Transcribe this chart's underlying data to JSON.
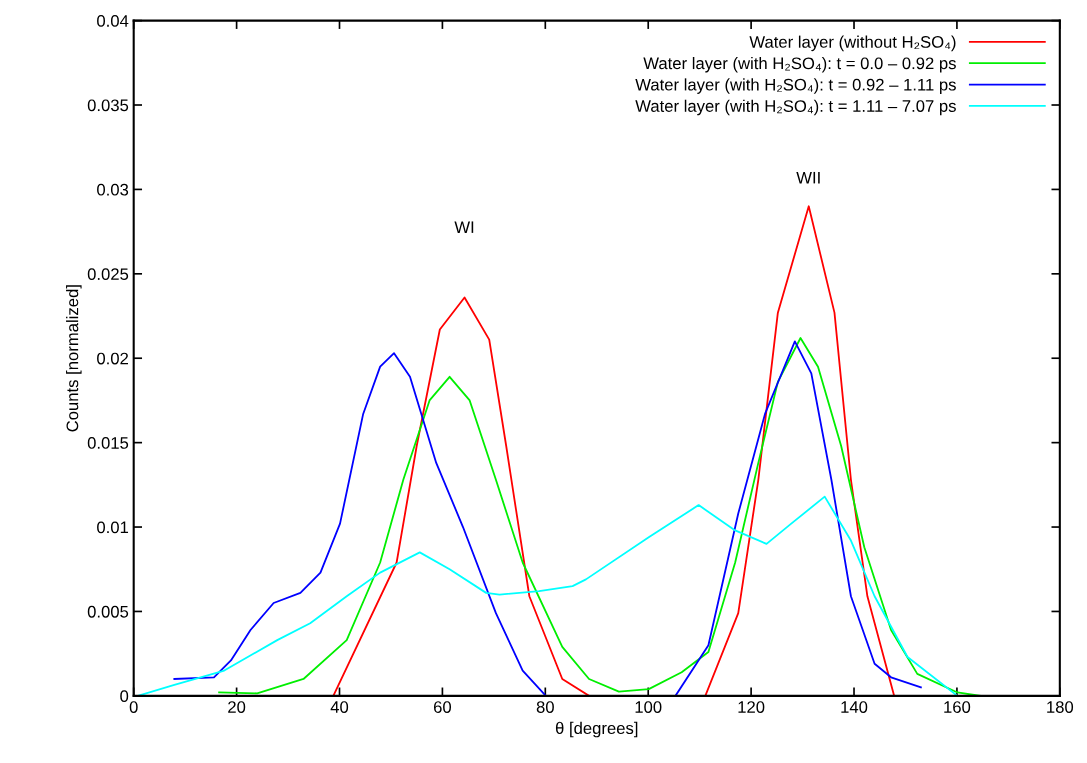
{
  "chart_data": {
    "type": "line",
    "xlabel": "θ [degrees]",
    "ylabel": "Counts [normalized]",
    "xlim": [
      0,
      180
    ],
    "xticks": [
      0,
      20,
      40,
      60,
      80,
      100,
      120,
      140,
      160,
      180
    ],
    "ylim": [
      0,
      0.04
    ],
    "yticks": [
      0,
      0.005,
      0.01,
      0.015,
      0.02,
      0.025,
      0.03,
      0.035,
      0.04
    ],
    "grid": false,
    "legend": "top right",
    "marker": "none",
    "line_style": "solid",
    "annotations": [
      "WI",
      "WII"
    ],
    "series": [
      {
        "name": "Water layer (without H₂SO₄)",
        "color": "#ff0000",
        "x": [
          38.8,
          51.1,
          55,
          59.5,
          64.3,
          69.1,
          72.4,
          76.9,
          83.3,
          88.5,
          111.1,
          117.5,
          121.4,
          125.2,
          131.2,
          136.2,
          139.4,
          142.6,
          147.8
        ],
        "values": [
          0,
          0.0079,
          0.0148,
          0.0217,
          0.0236,
          0.0211,
          0.0148,
          0.0059,
          0.001,
          0,
          0,
          0.0049,
          0.0128,
          0.0227,
          0.029,
          0.0227,
          0.0128,
          0.0059,
          0
        ]
      },
      {
        "name": "Water layer (with H₂SO₄): t = 0.0 – 0.92 ps",
        "color": "#00ee00",
        "x": [
          16.6,
          24,
          33,
          41.4,
          47.9,
          52.4,
          57.5,
          61.4,
          65.3,
          70.4,
          75.6,
          83.3,
          88.5,
          94.3,
          100.1,
          106.5,
          111.7,
          116.9,
          121.4,
          125.2,
          129.6,
          133,
          137.5,
          142,
          147.2,
          152.3,
          160.1,
          164.5
        ],
        "values": [
          0.0002,
          0.00015,
          0.001,
          0.0033,
          0.0079,
          0.0128,
          0.0175,
          0.0189,
          0.0175,
          0.0128,
          0.0079,
          0.0029,
          0.001,
          0.00025,
          0.0004,
          0.0014,
          0.0026,
          0.0079,
          0.0138,
          0.0186,
          0.0212,
          0.0195,
          0.0148,
          0.0088,
          0.0039,
          0.0013,
          0.0002,
          0
        ]
      },
      {
        "name": "Water layer (with H₂SO₄): t = 0.92 – 1.11 ps",
        "color": "#0000ff",
        "x": [
          7.9,
          15.6,
          18.9,
          22.7,
          27.2,
          32.4,
          36.3,
          40.1,
          44.6,
          47.9,
          50.6,
          53.7,
          58.8,
          64,
          70.4,
          75.6,
          80.1,
          105.3,
          111.7,
          117.5,
          122.7,
          128.5,
          131.7,
          135.6,
          139.4,
          144,
          147.2,
          153
        ],
        "values": [
          0.001,
          0.0011,
          0.0021,
          0.0039,
          0.0055,
          0.0061,
          0.0073,
          0.0102,
          0.0167,
          0.0195,
          0.0203,
          0.0189,
          0.0138,
          0.01,
          0.0049,
          0.0015,
          0,
          0,
          0.003,
          0.0108,
          0.0167,
          0.021,
          0.0191,
          0.0128,
          0.0059,
          0.0019,
          0.0011,
          0.0005
        ]
      },
      {
        "name": "Water layer (with H₂SO₄): t = 1.11 – 7.07 ps",
        "color": "#00ffff",
        "x": [
          0.8,
          7.9,
          17.6,
          27.9,
          34.3,
          41.4,
          47.9,
          55.6,
          61.4,
          68.5,
          71.1,
          78.8,
          85.3,
          87.9,
          100.1,
          109.8,
          116.9,
          123,
          127.8,
          134.3,
          139.4,
          144,
          150.4,
          160.1
        ],
        "values": [
          0,
          0.00065,
          0.0015,
          0.0033,
          0.0043,
          0.0059,
          0.0073,
          0.0085,
          0.0075,
          0.0061,
          0.006,
          0.0062,
          0.0065,
          0.0069,
          0.0094,
          0.0113,
          0.0098,
          0.009,
          0.0102,
          0.0118,
          0.0092,
          0.0059,
          0.0023,
          0
        ]
      }
    ]
  }
}
